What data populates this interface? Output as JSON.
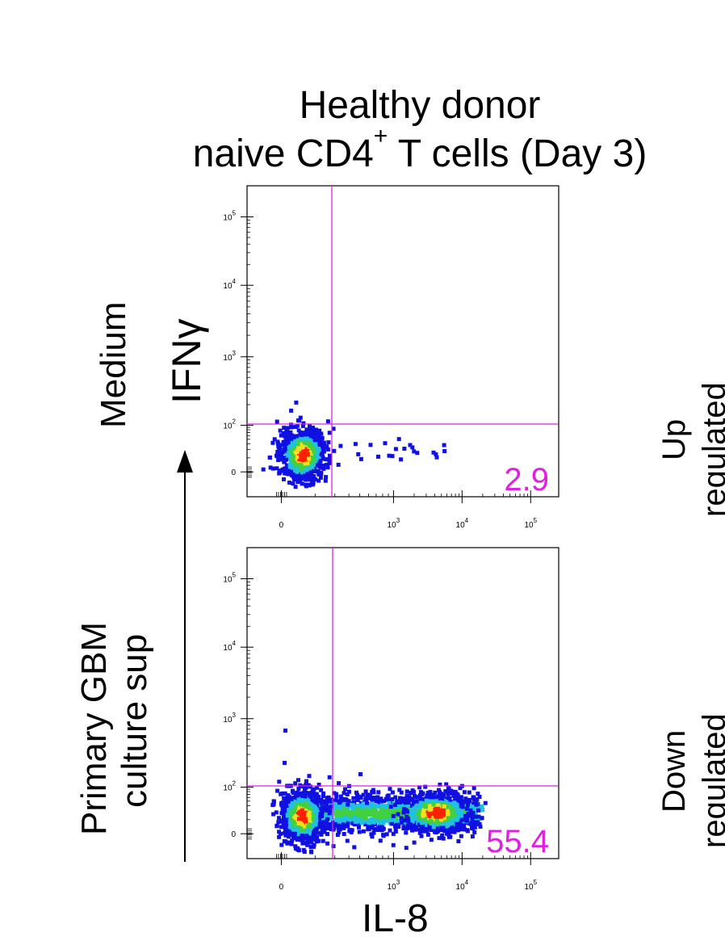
{
  "figure": {
    "title_line1": "Healthy donor",
    "title_line2_main": "naive CD4",
    "title_line2_sup": "+",
    "title_line2_rest": " T cells (Day 3)",
    "row_label_top": "Medium",
    "row_label_bottom_line1": "Primary GBM",
    "row_label_bottom_line2": "culture sup",
    "right_label_top_line1": "Up",
    "right_label_top_line2": "regulated",
    "right_label_bottom_line1": "Down",
    "right_label_bottom_line2": "regulated"
  },
  "colors": {
    "gate": "#e020e0",
    "percent_text": "#e020e0",
    "density_low": "#1010e0",
    "density_mid": "#20c0e0",
    "density_midhigh": "#40d040",
    "density_high": "#f0e020",
    "density_peak": "#ff2000"
  },
  "chart_data": [
    {
      "type": "scatter",
      "panel": "top",
      "xlabel": "",
      "ylabel": "IFNγ",
      "x_scale": "biexponential",
      "y_scale": "biexponential",
      "x_tick_labels": [
        "0",
        "10^3",
        "10^4",
        "10^5"
      ],
      "y_tick_labels": [
        "0",
        "10^2",
        "10^3",
        "10^4",
        "10^5"
      ],
      "quadrant_percent_bottom_right": "2.9",
      "populations": [
        {
          "label": "main",
          "x_center": 10,
          "y_center": 10
        }
      ]
    },
    {
      "type": "scatter",
      "panel": "bottom",
      "xlabel": "IL-8",
      "ylabel": "",
      "x_scale": "biexponential",
      "y_scale": "biexponential",
      "x_tick_labels": [
        "0",
        "10^3",
        "10^4",
        "10^5"
      ],
      "y_tick_labels": [
        "0",
        "10^2",
        "10^3",
        "10^4",
        "10^5"
      ],
      "quadrant_percent_bottom_right": "55.4",
      "populations": [
        {
          "label": "IL-8 negative",
          "x_center": 10,
          "y_center": 10
        },
        {
          "label": "IL-8 positive",
          "x_center": 4000,
          "y_center": 10
        }
      ]
    }
  ]
}
